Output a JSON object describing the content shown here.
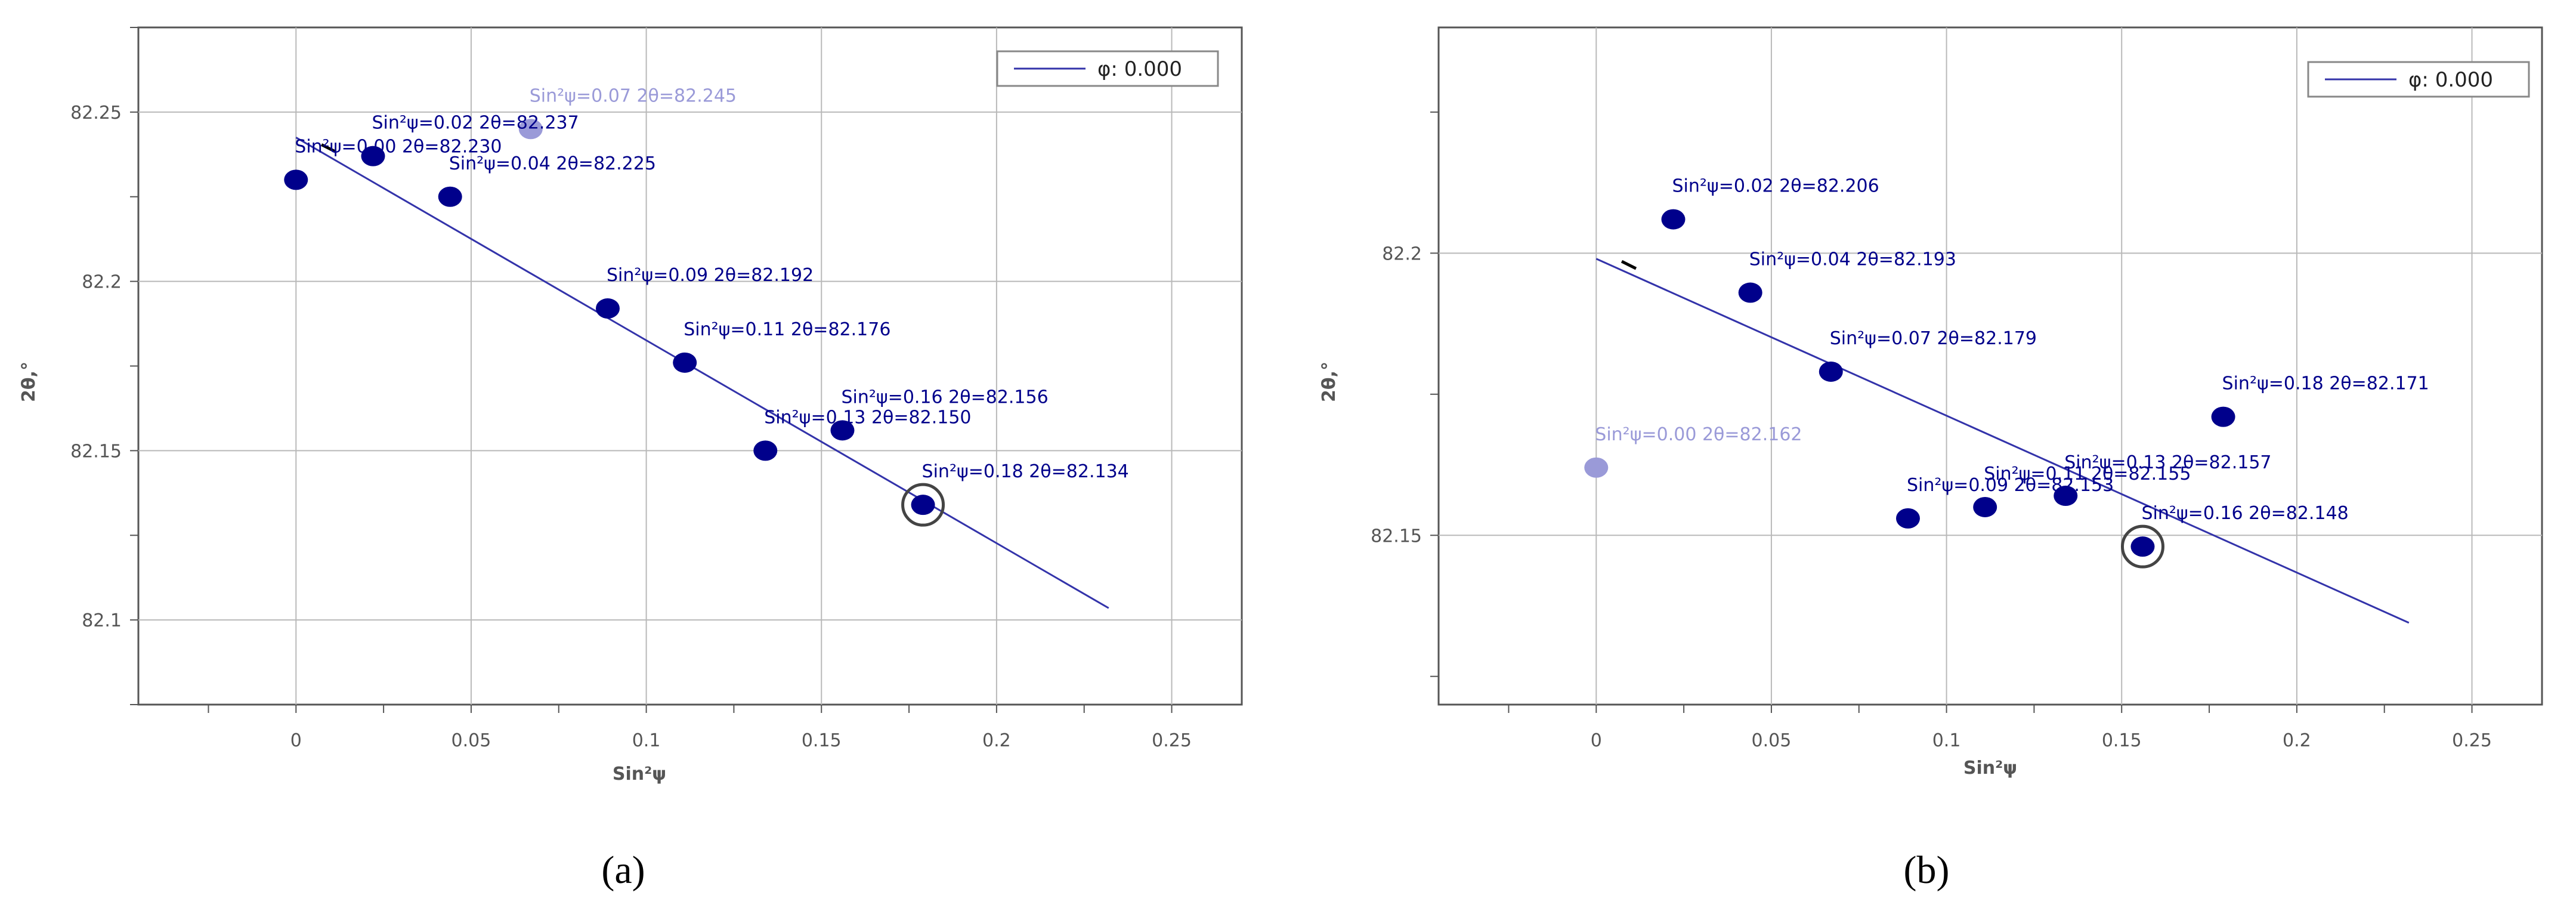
{
  "colors": {
    "point": "#00008b",
    "point_faded": "#9a9ad8",
    "fit_line": "#3333aa",
    "grid": "#b9b9b9",
    "axis_text": "#555555"
  },
  "chart_data": [
    {
      "type": "scatter",
      "panel_label": "(a)",
      "xlabel": "Sin²ψ",
      "ylabel": "2θ,°",
      "xlim": [
        -0.045,
        0.27
      ],
      "ylim": [
        82.075,
        82.275
      ],
      "x_ticks": [
        0,
        0.05,
        0.1,
        0.15,
        0.2,
        0.25
      ],
      "x_tick_labels": [
        "0",
        "0.05",
        "0.1",
        "0.15",
        "0.2",
        "0.25"
      ],
      "y_ticks": [
        82.1,
        82.15,
        82.2,
        82.25
      ],
      "y_tick_labels": [
        "82.1",
        "82.15",
        "82.2",
        "82.25"
      ],
      "grid": true,
      "legend": {
        "position": "top-right",
        "entries": [
          "φ: 0.000"
        ]
      },
      "fit_line": {
        "x": [
          0,
          0.232
        ],
        "y": [
          82.2425,
          82.1035
        ]
      },
      "points": [
        {
          "x": 0,
          "y": 82.23,
          "label": "Sin²ψ=0.00 2θ=82.230",
          "excluded": false,
          "selected": false
        },
        {
          "x": 0.022,
          "y": 82.237,
          "label": "Sin²ψ=0.02 2θ=82.237",
          "excluded": false,
          "selected": false
        },
        {
          "x": 0.044,
          "y": 82.225,
          "label": "Sin²ψ=0.04 2θ=82.225",
          "excluded": false,
          "selected": false
        },
        {
          "x": 0.067,
          "y": 82.245,
          "label": "Sin²ψ=0.07 2θ=82.245",
          "excluded": true,
          "selected": false
        },
        {
          "x": 0.089,
          "y": 82.192,
          "label": "Sin²ψ=0.09 2θ=82.192",
          "excluded": false,
          "selected": false
        },
        {
          "x": 0.111,
          "y": 82.176,
          "label": "Sin²ψ=0.11 2θ=82.176",
          "excluded": false,
          "selected": false
        },
        {
          "x": 0.134,
          "y": 82.15,
          "label": "Sin²ψ=0.13 2θ=82.150",
          "excluded": false,
          "selected": false
        },
        {
          "x": 0.156,
          "y": 82.156,
          "label": "Sin²ψ=0.16 2θ=82.156",
          "excluded": false,
          "selected": false
        },
        {
          "x": 0.179,
          "y": 82.134,
          "label": "Sin²ψ=0.18 2θ=82.134",
          "excluded": false,
          "selected": true
        }
      ]
    },
    {
      "type": "scatter",
      "panel_label": "(b)",
      "xlabel": "Sin²ψ",
      "ylabel": "2θ,°",
      "xlim": [
        -0.045,
        0.27
      ],
      "ylim": [
        82.12,
        82.24
      ],
      "x_ticks": [
        0,
        0.05,
        0.1,
        0.15,
        0.2,
        0.25
      ],
      "x_tick_labels": [
        "0",
        "0.05",
        "0.1",
        "0.15",
        "0.2",
        "0.25"
      ],
      "y_ticks": [
        82.15,
        82.2
      ],
      "y_tick_labels": [
        "82.15",
        "82.2"
      ],
      "grid": true,
      "legend": {
        "position": "top-right",
        "entries": [
          "φ: 0.000"
        ]
      },
      "fit_line": {
        "x": [
          0,
          0.232
        ],
        "y": [
          82.199,
          82.1345
        ]
      },
      "points": [
        {
          "x": 0,
          "y": 82.162,
          "label": "Sin²ψ=0.00 2θ=82.162",
          "excluded": true,
          "selected": false
        },
        {
          "x": 0.022,
          "y": 82.206,
          "label": "Sin²ψ=0.02 2θ=82.206",
          "excluded": false,
          "selected": false
        },
        {
          "x": 0.044,
          "y": 82.193,
          "label": "Sin²ψ=0.04 2θ=82.193",
          "excluded": false,
          "selected": false
        },
        {
          "x": 0.067,
          "y": 82.179,
          "label": "Sin²ψ=0.07 2θ=82.179",
          "excluded": false,
          "selected": false
        },
        {
          "x": 0.089,
          "y": 82.153,
          "label": "Sin²ψ=0.09 2θ=82.153",
          "excluded": false,
          "selected": false
        },
        {
          "x": 0.111,
          "y": 82.155,
          "label": "Sin²ψ=0.11 2θ=82.155",
          "excluded": false,
          "selected": false
        },
        {
          "x": 0.134,
          "y": 82.157,
          "label": "Sin²ψ=0.13 2θ=82.157",
          "excluded": false,
          "selected": false
        },
        {
          "x": 0.156,
          "y": 82.148,
          "label": "Sin²ψ=0.16 2θ=82.148",
          "excluded": false,
          "selected": true
        },
        {
          "x": 0.179,
          "y": 82.171,
          "label": "Sin²ψ=0.18 2θ=82.171",
          "excluded": false,
          "selected": false
        }
      ]
    }
  ]
}
